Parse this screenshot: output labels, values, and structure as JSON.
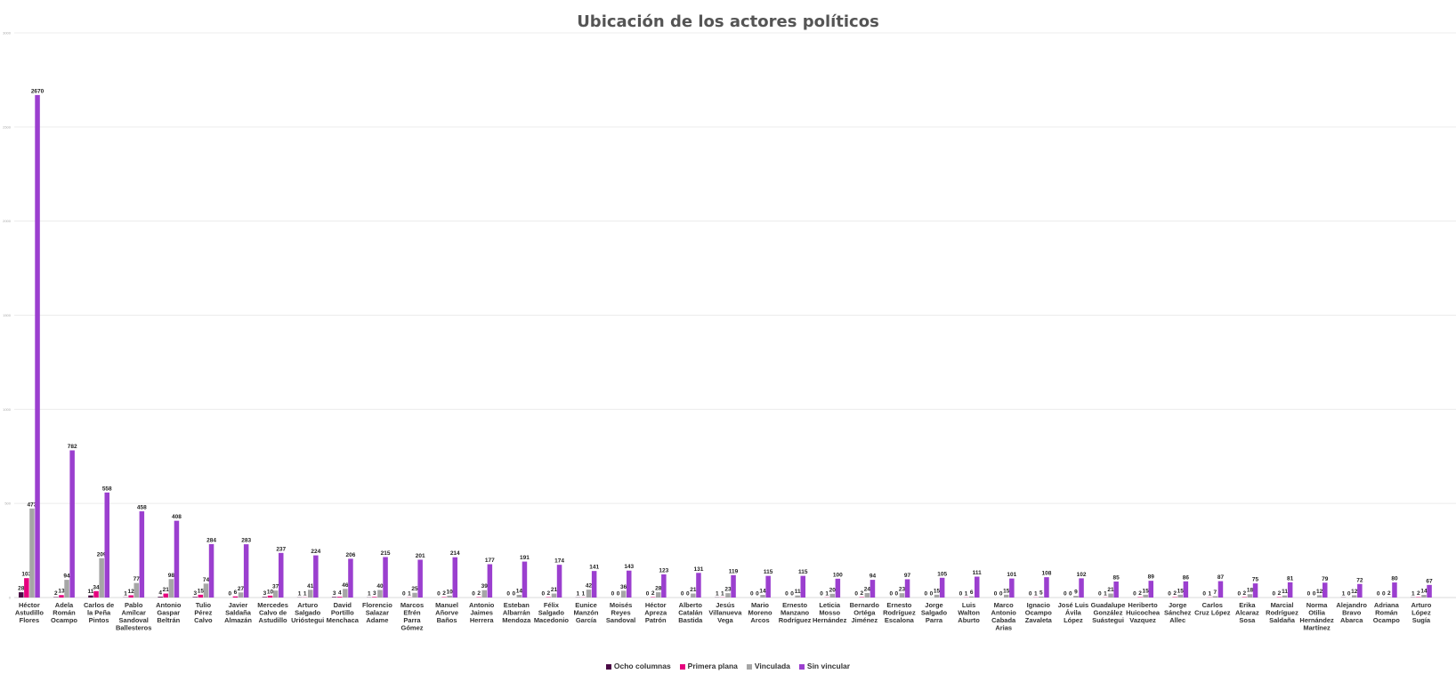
{
  "chart_data": {
    "type": "bar",
    "title": "Ubicación de los actores políticos",
    "xlabel": "",
    "ylabel": "",
    "ylim": [
      0,
      3000
    ],
    "yticks": [
      "0",
      "500",
      "1000",
      "1500",
      "2000",
      "2500",
      "3000"
    ],
    "grid": true,
    "legend_position": "bottom",
    "categories": [
      "Héctor Astudillo Flores",
      "Adela Román Ocampo",
      "Carlos de la Peña Pintos",
      "Pablo Amílcar Sandoval Ballesteros",
      "Antonio Gaspar Beltrán",
      "Tulio Pérez Calvo",
      "Javier Saldaña Almazán",
      "Mercedes Calvo de Astudillo",
      "Arturo Salgado Urióstegui",
      "David Portillo Menchaca",
      "Florencio Salazar Adame",
      "Marcos Efrén Parra Gómez",
      "Manuel Añorve Baños",
      "Antonio Jaimes Herrera",
      "Esteban Albarrán Mendoza",
      "Félix Salgado Macedonio",
      "Eunice Manzón García",
      "Moisés Reyes Sandoval",
      "Héctor Apreza Patrón",
      "Alberto Catalán Bastida",
      "Jesús Villanueva Vega",
      "Mario Moreno Arcos",
      "Ernesto Manzano Rodríguez",
      "Leticia Mosso Hernández",
      "Bernardo Ortéga Jiménez",
      "Ernesto Rodríguez Escalona",
      "Jorge Salgado Parra",
      "Luis Walton Aburto",
      "Marco Antonio Cabada Arias",
      "Ignacio Ocampo Zavaleta",
      "José Luis Ávila López",
      "Guadalupe González Suástegui",
      "Heriberto Huicochea Vazquez",
      "Jorge Sánchez Allec",
      "Carlos Cruz López",
      "Erika Alcaraz Sosa",
      "Marcial Rodríguez Saldaña",
      "Norma Otilia Hernández Martínez",
      "Alejandro Bravo Abarca",
      "Adriana Román Ocampo",
      "Arturo López Sugía"
    ],
    "series": [
      {
        "name": "Ocho columnas",
        "color": "#4b0a46",
        "values": [
          28,
          2,
          11,
          1,
          4,
          3,
          0,
          3,
          1,
          3,
          1,
          0,
          0,
          0,
          0,
          0,
          1,
          0,
          0,
          0,
          1,
          0,
          0,
          0,
          0,
          0,
          0,
          0,
          0,
          0,
          0,
          0,
          0,
          0,
          0,
          0,
          0,
          0,
          1,
          0,
          1
        ]
      },
      {
        "name": "Primera plana",
        "color": "#e6007e",
        "values": [
          103,
          13,
          34,
          12,
          21,
          15,
          6,
          10,
          1,
          4,
          3,
          1,
          2,
          2,
          0,
          2,
          1,
          0,
          2,
          0,
          1,
          0,
          0,
          1,
          2,
          0,
          0,
          1,
          0,
          1,
          0,
          1,
          2,
          2,
          1,
          2,
          2,
          0,
          0,
          0,
          2
        ]
      },
      {
        "name": "Vinculada",
        "color": "#a6a6a6",
        "values": [
          473,
          94,
          209,
          77,
          98,
          74,
          27,
          37,
          41,
          46,
          40,
          25,
          10,
          39,
          14,
          21,
          42,
          36,
          28,
          21,
          23,
          14,
          11,
          20,
          24,
          23,
          15,
          6,
          15,
          5,
          9,
          21,
          15,
          15,
          7,
          18,
          11,
          12,
          12,
          2,
          14
        ]
      },
      {
        "name": "Sin vincular",
        "color": "#9b3fcf",
        "values": [
          2670,
          782,
          558,
          458,
          408,
          284,
          283,
          237,
          224,
          206,
          215,
          201,
          214,
          177,
          191,
          174,
          141,
          143,
          123,
          131,
          119,
          115,
          115,
          100,
          94,
          97,
          105,
          111,
          101,
          108,
          102,
          85,
          89,
          86,
          87,
          75,
          81,
          79,
          72,
          80,
          67
        ]
      }
    ]
  }
}
